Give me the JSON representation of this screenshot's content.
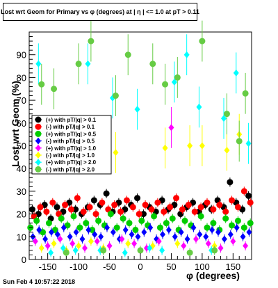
{
  "title": "Lost wrt Geom for Primary vs φ (degrees) at | η | <= 1.0 at pT > 0.11",
  "date": "Sun Feb  4 10:57:22 2018",
  "chart_data": {
    "type": "scatter",
    "title": "Lost wrt Geom for Primary vs φ (degrees) at | η | <= 1.0 at pT > 0.11",
    "xlabel": "φ (degrees)",
    "ylabel": "Lost wrt Geom (%)",
    "xlim": [
      -180,
      180
    ],
    "ylim": [
      0,
      100
    ],
    "xticks": [
      -150,
      -100,
      -50,
      0,
      50,
      100,
      150
    ],
    "yticks": [
      0,
      10,
      20,
      30,
      40,
      50,
      60,
      70,
      80,
      90
    ],
    "grid": false,
    "legend_position": "top-left",
    "series": [
      {
        "name": "(+) with pT/|q| > 0.1",
        "color": "#000000",
        "marker": "circle",
        "x": [
          -175,
          -165,
          -155,
          -145,
          -135,
          -125,
          -115,
          -105,
          -95,
          -85,
          -75,
          -65,
          -55,
          -45,
          -35,
          -25,
          -15,
          -5,
          5,
          15,
          25,
          35,
          45,
          55,
          65,
          75,
          85,
          95,
          105,
          115,
          125,
          135,
          145,
          155,
          165,
          175
        ],
        "y": [
          22,
          20,
          24,
          18,
          23,
          21,
          25,
          22,
          20,
          23,
          26,
          24,
          29,
          21,
          25,
          22,
          24,
          27,
          20,
          23,
          21,
          26,
          22,
          24,
          20,
          23,
          25,
          21,
          24,
          22,
          26,
          23,
          34,
          25,
          22,
          28
        ]
      },
      {
        "name": "(-) with pT/|q| > 0.1",
        "color": "#ff0000",
        "marker": "circle",
        "x": [
          -172,
          -162,
          -152,
          -142,
          -132,
          -122,
          -112,
          -102,
          -92,
          -82,
          -72,
          -62,
          -52,
          -42,
          -32,
          -22,
          -12,
          -2,
          8,
          18,
          28,
          38,
          48,
          58,
          68,
          78,
          88,
          98,
          108,
          118,
          128,
          138,
          148,
          158,
          168,
          178
        ],
        "y": [
          19,
          23,
          21,
          25,
          20,
          24,
          22,
          27,
          21,
          23,
          20,
          25,
          22,
          24,
          21,
          26,
          23,
          20,
          24,
          22,
          25,
          21,
          23,
          27,
          22,
          24,
          21,
          23,
          25,
          22,
          24,
          21,
          26,
          23,
          30,
          25
        ]
      },
      {
        "name": "(+) with pT/|q| > 0.5",
        "color": "#00cc00",
        "marker": "circle",
        "x": [
          -178,
          -168,
          -158,
          -148,
          -138,
          -128,
          -118,
          -108,
          -98,
          -88,
          -78,
          -68,
          -58,
          -48,
          -38,
          -28,
          -18,
          -8,
          2,
          12,
          22,
          32,
          42,
          52,
          62,
          72,
          82,
          98,
          108,
          118,
          128,
          138,
          148,
          158,
          168,
          178
        ],
        "y": [
          14,
          17,
          12,
          16,
          13,
          18,
          15,
          19,
          14,
          16,
          13,
          17,
          15,
          20,
          14,
          18,
          16,
          13,
          17,
          15,
          19,
          14,
          16,
          18,
          13,
          17,
          15,
          19,
          14,
          16,
          13,
          18,
          15,
          17,
          14,
          16
        ]
      },
      {
        "name": "(-) with pT/|q| > 0.5",
        "color": "#0000ff",
        "marker": "diamond",
        "x": [
          -174,
          -164,
          -154,
          -144,
          -134,
          -124,
          -114,
          -104,
          -94,
          -84,
          -74,
          -64,
          -54,
          -44,
          -34,
          -24,
          -14,
          -4,
          6,
          16,
          26,
          36,
          46,
          56,
          66,
          76,
          86,
          96,
          106,
          116,
          126,
          136,
          146,
          156,
          166,
          176
        ],
        "y": [
          10,
          13,
          9,
          12,
          11,
          14,
          10,
          12,
          9,
          13,
          11,
          10,
          14,
          12,
          9,
          13,
          11,
          10,
          12,
          14,
          9,
          11,
          13,
          10,
          12,
          9,
          14,
          11,
          10,
          13,
          12,
          9,
          11,
          14,
          10,
          12
        ]
      },
      {
        "name": "(+) with pT/|q| > 1.0",
        "color": "#ff00ff",
        "marker": "diamond",
        "x": [
          -170,
          -150,
          -130,
          -110,
          -90,
          -70,
          -50,
          -30,
          -10,
          10,
          30,
          50,
          70,
          90,
          110,
          130,
          150,
          170
        ],
        "y": [
          8,
          6,
          9,
          7,
          5,
          8,
          6,
          9,
          7,
          5,
          8,
          58,
          6,
          9,
          7,
          5,
          8,
          6
        ]
      },
      {
        "name": "(-) with pT/|q| > 1.0",
        "color": "#ffff00",
        "marker": "diamond",
        "x": [
          -160,
          -140,
          -120,
          -100,
          -80,
          -60,
          -40,
          -20,
          0,
          20,
          40,
          60,
          80,
          100,
          120,
          140,
          160
        ],
        "y": [
          5,
          7,
          4,
          6,
          8,
          5,
          47,
          7,
          4,
          6,
          49,
          7,
          50,
          50,
          6,
          48,
          55
        ]
      },
      {
        "name": "(+) with pT/|q| > 2.0",
        "color": "#00ffff",
        "marker": "diamond",
        "x": [
          -165,
          -145,
          -125,
          -105,
          -85,
          -65,
          -45,
          -25,
          -5,
          15,
          35,
          55,
          75,
          95,
          115,
          135,
          155,
          175
        ],
        "y": [
          86,
          3,
          5,
          4,
          86,
          4,
          71,
          3,
          66,
          5,
          4,
          78,
          90,
          67,
          4,
          62,
          82,
          51
        ]
      },
      {
        "name": "(-) with pT/|q| > 2.0",
        "color": "#66cc44",
        "marker": "circle",
        "x": [
          -160,
          -140,
          -120,
          -100,
          -80,
          -60,
          -40,
          -20,
          0,
          20,
          40,
          60,
          80,
          100,
          120,
          140,
          160,
          170
        ],
        "y": [
          77,
          75,
          3,
          86,
          96,
          4,
          72,
          90,
          4,
          86,
          77,
          80,
          3,
          96,
          4,
          64,
          52,
          73
        ]
      }
    ]
  }
}
